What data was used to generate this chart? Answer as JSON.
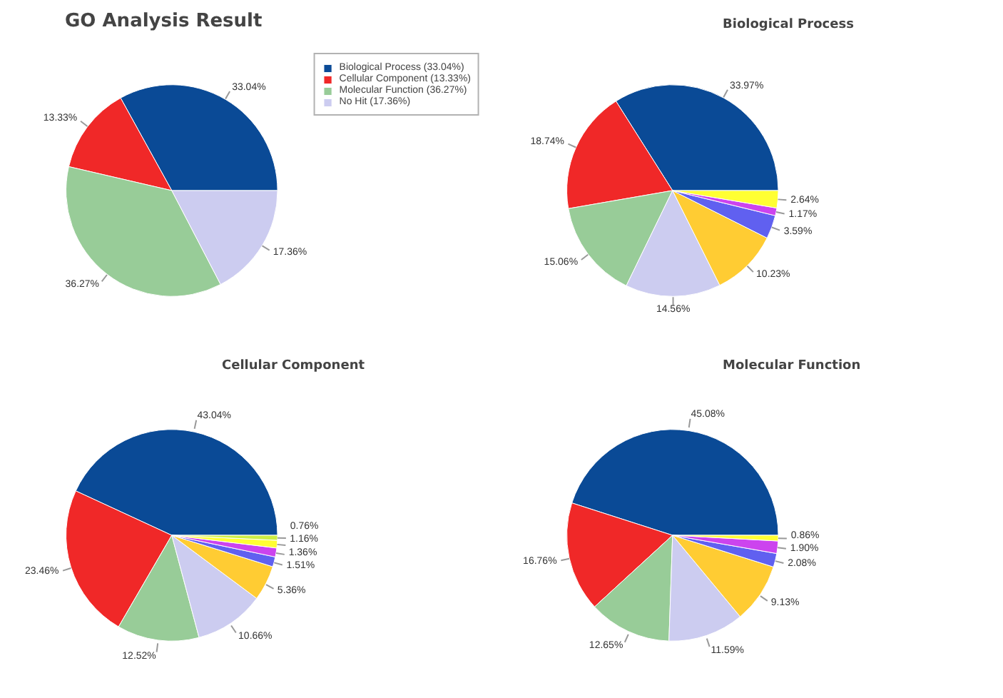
{
  "chart_data": [
    {
      "type": "pie",
      "title": "GO Analysis Result",
      "categories": [
        "Biological Process (33.04%)",
        "Cellular Component (13.33%)",
        "Molecular Function (36.27%)",
        "No Hit (17.36%)"
      ],
      "values": [
        33.04,
        13.33,
        36.27,
        17.36
      ],
      "colors": [
        "#0a4a96",
        "#f02828",
        "#98cc98",
        "#ccccf0"
      ],
      "value_labels": [
        "33.04%",
        "13.33%",
        "36.27%",
        "17.36%"
      ],
      "legend": "top right"
    },
    {
      "type": "pie",
      "title": "Biological Process",
      "categories": [
        null,
        null,
        null,
        null,
        null,
        null,
        null,
        null
      ],
      "values": [
        33.97,
        18.74,
        15.06,
        14.56,
        10.23,
        3.59,
        1.17,
        2.64
      ],
      "colors": [
        "#0a4a96",
        "#f02828",
        "#98cc98",
        "#ccccf0",
        "#ffcc33",
        "#6060f0",
        "#cc44ee",
        "#ffff33"
      ],
      "value_labels": [
        "33.97%",
        "18.74%",
        "15.06%",
        "14.56%",
        "10.23%",
        "3.59%",
        "1.17%",
        "2.64%"
      ]
    },
    {
      "type": "pie",
      "title": "Cellular Component",
      "categories": [
        null,
        null,
        null,
        null,
        null,
        null,
        null,
        null,
        null
      ],
      "values": [
        43.04,
        23.46,
        12.52,
        10.66,
        5.36,
        1.51,
        1.36,
        1.16,
        0.76
      ],
      "colors": [
        "#0a4a96",
        "#f02828",
        "#98cc98",
        "#ccccf0",
        "#ffcc33",
        "#6060f0",
        "#cc44ee",
        "#ffff33",
        "#ccee44"
      ],
      "value_labels": [
        "43.04%",
        "23.46%",
        "12.52%",
        "10.66%",
        "5.36%",
        "1.51%",
        "1.36%",
        "1.16%",
        "0.76%"
      ]
    },
    {
      "type": "pie",
      "title": "Molecular Function",
      "categories": [
        null,
        null,
        null,
        null,
        null,
        null,
        null,
        null
      ],
      "values": [
        45.08,
        16.76,
        12.65,
        11.59,
        9.13,
        2.08,
        1.9,
        0.86
      ],
      "colors": [
        "#0a4a96",
        "#f02828",
        "#98cc98",
        "#ccccf0",
        "#ffcc33",
        "#6060f0",
        "#cc44ee",
        "#ffff33"
      ],
      "value_labels": [
        "45.08%",
        "16.76%",
        "12.65%",
        "11.59%",
        "9.13%",
        "2.08%",
        "1.90%",
        "0.86%"
      ]
    }
  ]
}
